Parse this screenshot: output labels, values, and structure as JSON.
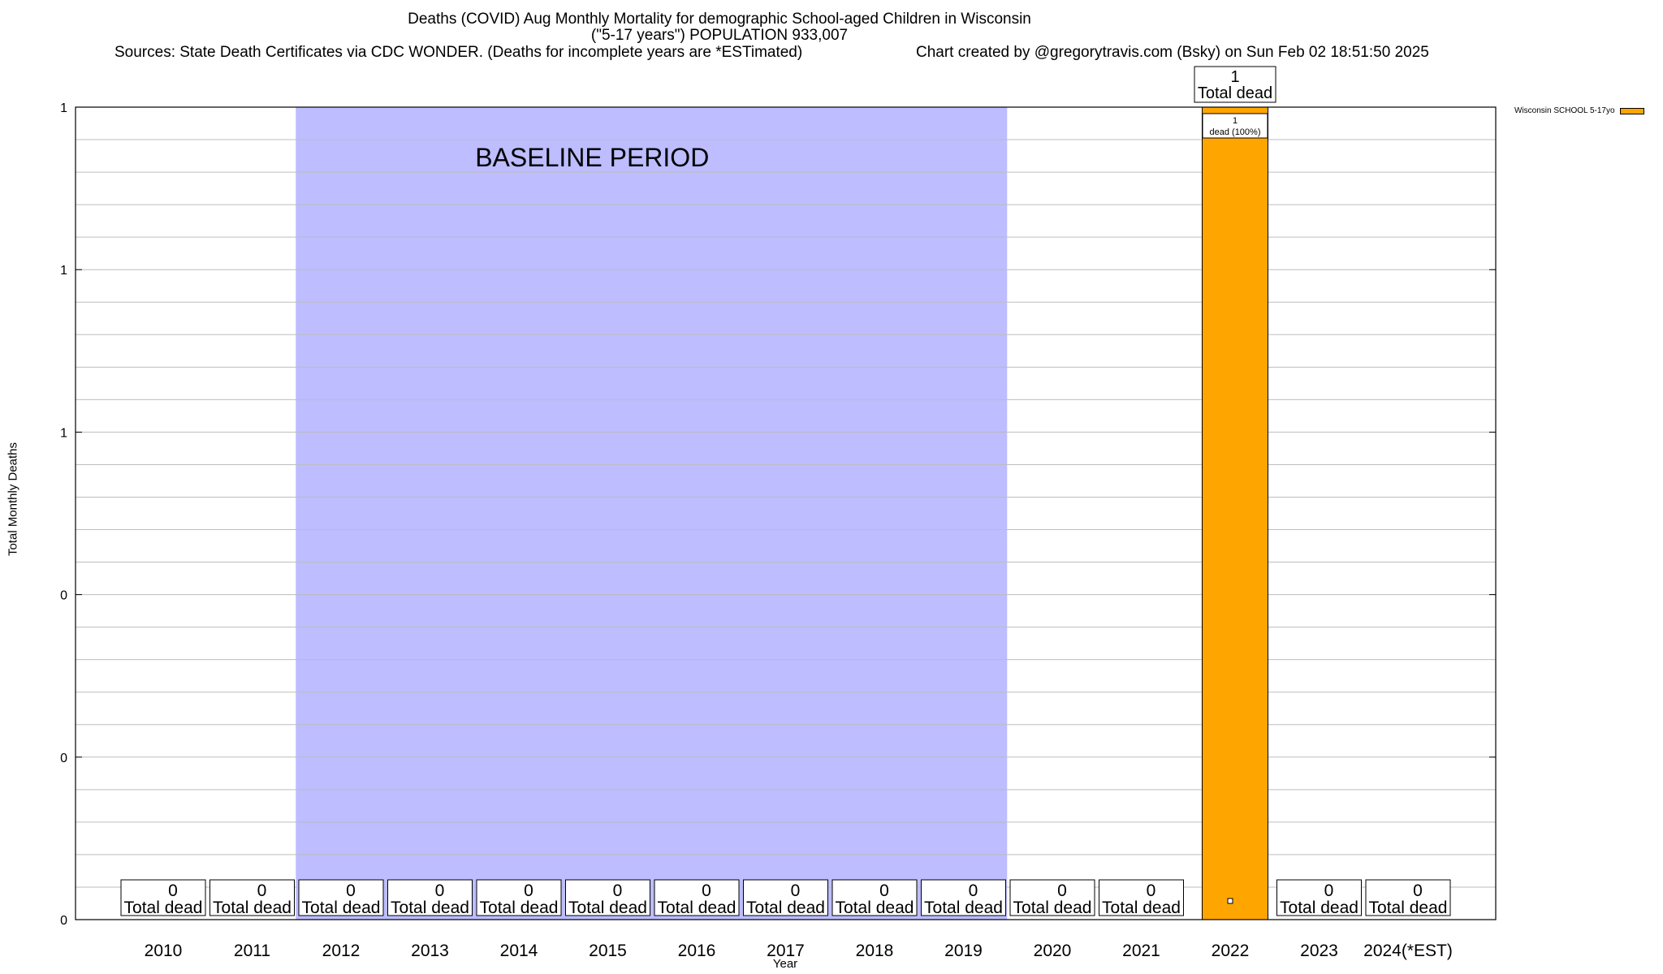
{
  "header": {
    "title_line1": "Deaths (COVID) Aug Monthly Mortality for demographic School-aged Children in Wisconsin",
    "title_line2": "(\"5-17 years\") POPULATION 933,007",
    "sources": "Sources: State Death Certificates via CDC WONDER. (Deaths for incomplete years are *ESTimated)",
    "credit": "Chart created by @gregorytravis.com (Bsky) on Sun Feb 02 18:51:50 2025"
  },
  "chart_data": {
    "type": "bar",
    "xlabel": "Year",
    "ylabel": "Total Monthly Deaths",
    "ylim": [
      0,
      1
    ],
    "y_tick_labels": [
      "0",
      "0",
      "0",
      "1",
      "1",
      "1"
    ],
    "grid": true,
    "categories": [
      "2010",
      "2011",
      "2012",
      "2013",
      "2014",
      "2015",
      "2016",
      "2017",
      "2018",
      "2019",
      "2020",
      "2021",
      "2022",
      "2023",
      "2024(*EST)"
    ],
    "series": [
      {
        "name": "Wisconsin SCHOOL 5-17yo",
        "color": "#FFA500",
        "values": [
          0,
          0,
          0,
          0,
          0,
          0,
          0,
          0,
          0,
          0,
          0,
          0,
          1,
          0,
          0
        ]
      }
    ],
    "total_label_number": [
      "0",
      "0",
      "0",
      "0",
      "0",
      "0",
      "0",
      "0",
      "0",
      "0",
      "0",
      "0",
      "1",
      "0",
      "0"
    ],
    "total_label_text": "Total dead",
    "segment_label": {
      "category": "2022",
      "line1": "1",
      "line2": "dead (100%)"
    },
    "baseline": {
      "label": "BASELINE PERIOD",
      "from": "2012",
      "to": "2019",
      "color": "#BDBDFF"
    },
    "legend_position": "top-right"
  }
}
